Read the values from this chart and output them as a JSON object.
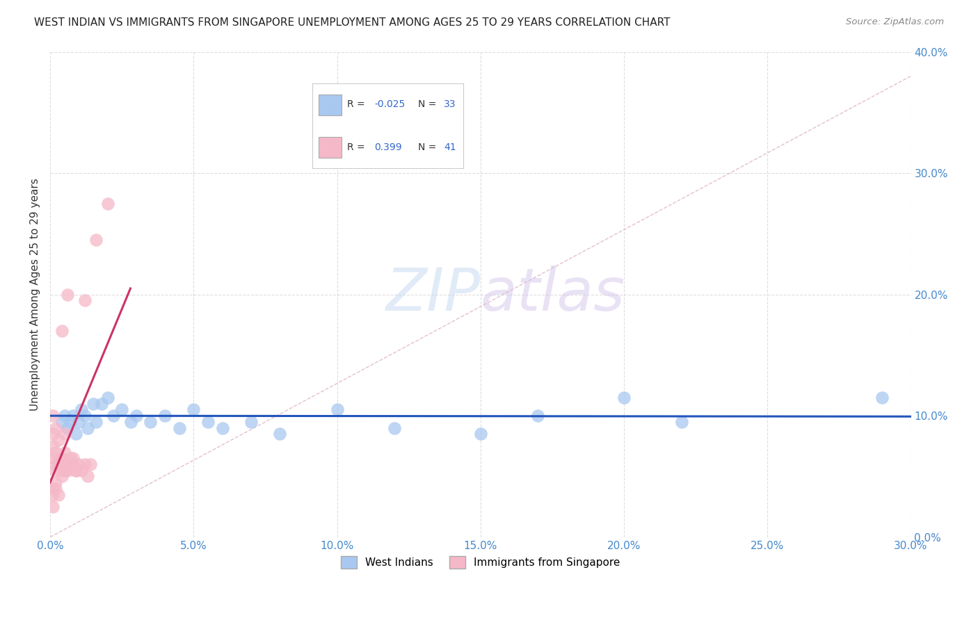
{
  "title": "WEST INDIAN VS IMMIGRANTS FROM SINGAPORE UNEMPLOYMENT AMONG AGES 25 TO 29 YEARS CORRELATION CHART",
  "source": "Source: ZipAtlas.com",
  "ylabel": "Unemployment Among Ages 25 to 29 years",
  "xlim": [
    0.0,
    0.3
  ],
  "ylim": [
    0.0,
    0.4
  ],
  "xticks": [
    0.0,
    0.05,
    0.1,
    0.15,
    0.2,
    0.25,
    0.3
  ],
  "yticks": [
    0.0,
    0.1,
    0.2,
    0.3,
    0.4
  ],
  "background_color": "#ffffff",
  "grid_color": "#dddddd",
  "blue_color": "#a8c8f0",
  "pink_color": "#f5b8c8",
  "blue_line_color": "#2255bb",
  "pink_line_color": "#cc3366",
  "diag_line_color": "#e0b8c8",
  "watermark_zip": "ZIP",
  "watermark_atlas": "atlas",
  "legend_label1": "West Indians",
  "legend_label2": "Immigrants from Singapore",
  "blue_x": [
    0.004,
    0.005,
    0.006,
    0.007,
    0.008,
    0.009,
    0.01,
    0.011,
    0.012,
    0.013,
    0.015,
    0.016,
    0.018,
    0.02,
    0.022,
    0.025,
    0.028,
    0.03,
    0.035,
    0.04,
    0.045,
    0.05,
    0.055,
    0.06,
    0.07,
    0.08,
    0.1,
    0.12,
    0.15,
    0.17,
    0.2,
    0.22,
    0.29
  ],
  "blue_y": [
    0.095,
    0.1,
    0.09,
    0.095,
    0.1,
    0.085,
    0.095,
    0.105,
    0.1,
    0.09,
    0.11,
    0.095,
    0.11,
    0.115,
    0.1,
    0.105,
    0.095,
    0.1,
    0.095,
    0.1,
    0.09,
    0.105,
    0.095,
    0.09,
    0.095,
    0.085,
    0.105,
    0.09,
    0.085,
    0.1,
    0.115,
    0.095,
    0.115
  ],
  "pink_x": [
    0.001,
    0.002,
    0.003,
    0.004,
    0.005,
    0.006,
    0.007,
    0.008,
    0.009,
    0.01,
    0.011,
    0.012,
    0.013,
    0.014,
    0.001,
    0.002,
    0.003,
    0.004,
    0.005,
    0.006,
    0.007,
    0.008,
    0.009,
    0.001,
    0.002,
    0.003,
    0.004,
    0.005,
    0.001,
    0.002,
    0.001,
    0.002,
    0.003,
    0.001,
    0.002,
    0.004,
    0.006,
    0.012,
    0.016,
    0.02,
    0.001
  ],
  "pink_y": [
    0.065,
    0.055,
    0.06,
    0.05,
    0.055,
    0.06,
    0.06,
    0.065,
    0.055,
    0.06,
    0.055,
    0.06,
    0.05,
    0.06,
    0.075,
    0.06,
    0.065,
    0.055,
    0.07,
    0.055,
    0.065,
    0.06,
    0.055,
    0.085,
    0.07,
    0.08,
    0.065,
    0.085,
    0.1,
    0.09,
    0.04,
    0.045,
    0.035,
    0.035,
    0.04,
    0.17,
    0.2,
    0.195,
    0.245,
    0.275,
    0.025
  ],
  "pink_trend_x": [
    0.0,
    0.028
  ],
  "pink_trend_y": [
    0.045,
    0.205
  ],
  "blue_trend_y_intercept": 0.1,
  "blue_trend_slope": -0.002
}
